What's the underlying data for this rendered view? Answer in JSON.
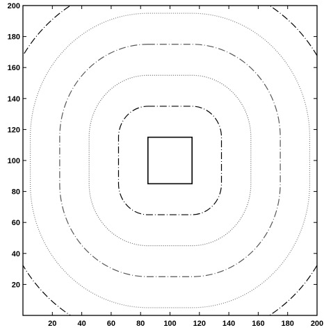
{
  "chart_data": {
    "type": "line",
    "title": "",
    "xlabel": "",
    "ylabel": "",
    "xlim": [
      0,
      200
    ],
    "ylim": [
      0,
      200
    ],
    "grid": false,
    "legend": "none",
    "x_ticks": [
      20,
      40,
      60,
      80,
      100,
      120,
      140,
      160,
      180,
      200
    ],
    "y_ticks": [
      20,
      40,
      60,
      80,
      100,
      120,
      140,
      160,
      180,
      200
    ],
    "x_tick_labels": [
      "20",
      "40",
      "60",
      "80",
      "100",
      "120",
      "140",
      "160",
      "180",
      "200"
    ],
    "y_tick_labels": [
      "20",
      "40",
      "60",
      "80",
      "100",
      "120",
      "140",
      "160",
      "180",
      "200"
    ],
    "series": [
      {
        "kind": "square",
        "center": [
          100,
          100
        ],
        "half_width": 15,
        "style": "solid",
        "color": "#000000"
      },
      {
        "kind": "rounded-square",
        "center": [
          100,
          100
        ],
        "half_width": 35,
        "corner_radius": 20,
        "style": "dashdot",
        "color": "#000000"
      },
      {
        "kind": "rounded-square",
        "center": [
          100,
          100
        ],
        "half_width": 55,
        "corner_radius": 40,
        "style": "dotted",
        "color": "#666666"
      },
      {
        "kind": "rounded-square",
        "center": [
          100,
          100
        ],
        "half_width": 75,
        "corner_radius": 60,
        "style": "dashdot",
        "color": "#555555"
      },
      {
        "kind": "rounded-square",
        "center": [
          100,
          100
        ],
        "half_width": 95,
        "corner_radius": 80,
        "style": "dotted",
        "color": "#777777"
      },
      {
        "kind": "rounded-square",
        "center": [
          100,
          100
        ],
        "half_width": 115,
        "corner_radius": 100,
        "style": "dashdot",
        "color": "#000000"
      }
    ]
  }
}
